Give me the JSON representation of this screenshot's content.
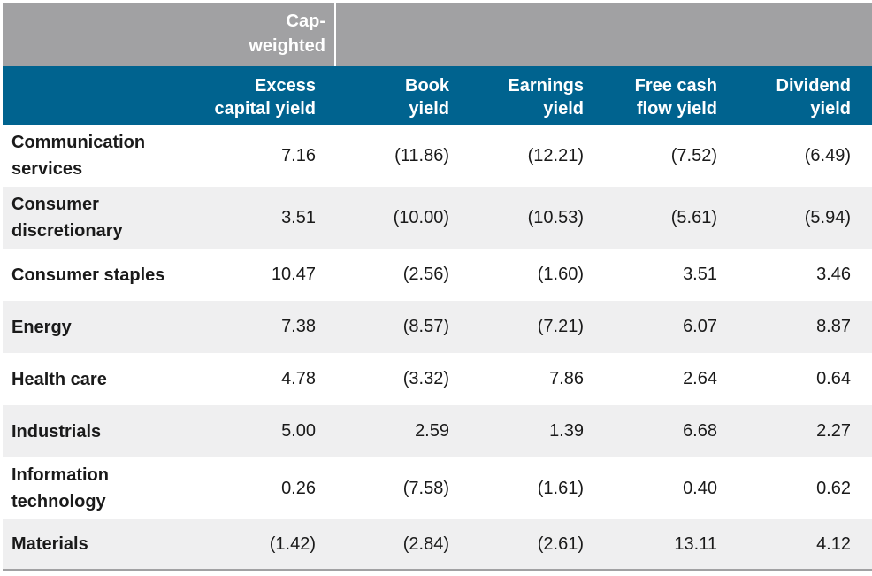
{
  "chart_data": {
    "type": "table",
    "group_header": "Cap-weighted",
    "columns": [
      "Excess capital yield",
      "Book yield",
      "Earnings yield",
      "Free cash flow yield",
      "Dividend yield"
    ],
    "header_lines": [
      [
        "Excess",
        "capital yield"
      ],
      [
        "Book",
        "yield"
      ],
      [
        "Earnings",
        "yield"
      ],
      [
        "Free cash",
        "flow yield"
      ],
      [
        "Dividend",
        "yield"
      ]
    ],
    "rows": [
      {
        "label": "Communication services",
        "label_lines": [
          "Communication",
          "services"
        ],
        "values": [
          "7.16",
          "(11.86)",
          "(12.21)",
          "(7.52)",
          "(6.49)"
        ]
      },
      {
        "label": "Consumer discretionary",
        "label_lines": [
          "Consumer",
          "discretionary"
        ],
        "values": [
          "3.51",
          "(10.00)",
          "(10.53)",
          "(5.61)",
          "(5.94)"
        ]
      },
      {
        "label": "Consumer staples",
        "label_lines": [
          "Consumer staples"
        ],
        "values": [
          "10.47",
          "(2.56)",
          "(1.60)",
          "3.51",
          "3.46"
        ]
      },
      {
        "label": "Energy",
        "label_lines": [
          "Energy"
        ],
        "values": [
          "7.38",
          "(8.57)",
          "(7.21)",
          "6.07",
          "8.87"
        ]
      },
      {
        "label": "Health care",
        "label_lines": [
          "Health care"
        ],
        "values": [
          "4.78",
          "(3.32)",
          "7.86",
          "2.64",
          "0.64"
        ]
      },
      {
        "label": "Industrials",
        "label_lines": [
          "Industrials"
        ],
        "values": [
          "5.00",
          "2.59",
          "1.39",
          "6.68",
          "2.27"
        ]
      },
      {
        "label": "Information technology",
        "label_lines": [
          "Information",
          "technology"
        ],
        "values": [
          "0.26",
          "(7.58)",
          "(1.61)",
          "0.40",
          "0.62"
        ]
      },
      {
        "label": "Materials",
        "label_lines": [
          "Materials"
        ],
        "values": [
          "(1.42)",
          "(2.84)",
          "(2.61)",
          "13.11",
          "4.12"
        ]
      }
    ]
  },
  "colors": {
    "group_band": "#a1a1a3",
    "header_band": "#00638f",
    "header_text": "#ffffff",
    "row_shade": "#efeff0",
    "text": "#1a1a1a"
  }
}
